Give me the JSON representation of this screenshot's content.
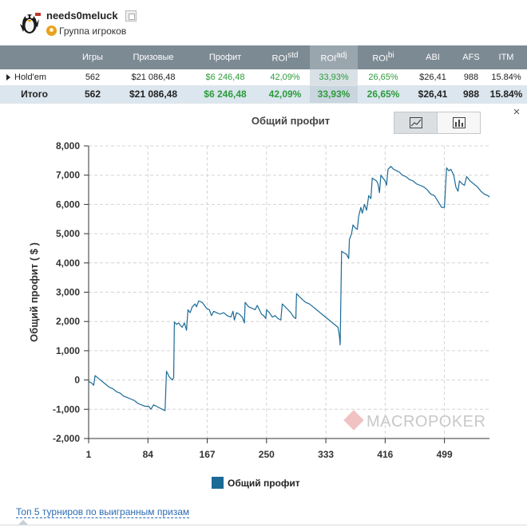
{
  "profile": {
    "username": "needs0meluck",
    "group_label": "Группа игроков"
  },
  "stats_table": {
    "headers": {
      "games": "Игры",
      "prizes": "Призовые",
      "profit": "Профит",
      "roi": "ROI",
      "roi_std_sup": "std",
      "roi_adj_sup": "adj",
      "roi_bi_sup": "bi",
      "abi": "ABI",
      "afs": "AFS",
      "itm": "ITM"
    },
    "rows": [
      {
        "name": "Hold'em",
        "games": "562",
        "prizes": "$21 086,48",
        "profit": "$6 246,48",
        "roi_std": "42,09%",
        "roi_adj": "33,93%",
        "roi_bi": "26,65%",
        "abi": "$26,41",
        "afs": "988",
        "itm": "15.84%"
      },
      {
        "name": "Итого",
        "games": "562",
        "prizes": "$21 086,48",
        "profit": "$6 246,48",
        "roi_std": "42,09%",
        "roi_adj": "33,93%",
        "roi_bi": "26,65%",
        "abi": "$26,41",
        "afs": "988",
        "itm": "15.84%"
      }
    ]
  },
  "chart_panel": {
    "close_icon": "close-icon",
    "line_view_icon": "line-chart-icon",
    "bar_view_icon": "bar-chart-icon",
    "watermark_text": "MACROPOKER",
    "colors": {
      "line": "#1a6a96",
      "grid": "#d4d4d4",
      "axis": "#333333"
    }
  },
  "chart_data": {
    "type": "line",
    "title": "Общий профит",
    "xlabel": "",
    "ylabel": "Общий профит ( $ )",
    "xlim": [
      1,
      562
    ],
    "ylim": [
      -2000,
      8000
    ],
    "x_ticks": [
      1,
      84,
      167,
      250,
      333,
      416,
      499
    ],
    "y_ticks": [
      -2000,
      -1000,
      0,
      1000,
      2000,
      3000,
      4000,
      5000,
      6000,
      7000,
      8000
    ],
    "y_tick_labels": [
      "-2,000",
      "-1,000",
      "0",
      "1,000",
      "2,000",
      "3,000",
      "4,000",
      "5,000",
      "6,000",
      "7,000",
      "8,000"
    ],
    "grid": true,
    "legend": "bottom",
    "series": [
      {
        "name": "Общий профит",
        "color": "#1a6a96",
        "points": [
          [
            1,
            -50
          ],
          [
            5,
            -100
          ],
          [
            8,
            -180
          ],
          [
            10,
            150
          ],
          [
            15,
            50
          ],
          [
            20,
            -50
          ],
          [
            25,
            -150
          ],
          [
            30,
            -250
          ],
          [
            35,
            -300
          ],
          [
            40,
            -400
          ],
          [
            45,
            -450
          ],
          [
            50,
            -550
          ],
          [
            55,
            -600
          ],
          [
            60,
            -650
          ],
          [
            65,
            -700
          ],
          [
            70,
            -800
          ],
          [
            75,
            -850
          ],
          [
            80,
            -900
          ],
          [
            85,
            -900
          ],
          [
            88,
            -1000
          ],
          [
            92,
            -850
          ],
          [
            96,
            -900
          ],
          [
            100,
            -950
          ],
          [
            104,
            -1000
          ],
          [
            108,
            -1050
          ],
          [
            110,
            300
          ],
          [
            114,
            100
          ],
          [
            118,
            0
          ],
          [
            120,
            80
          ],
          [
            121,
            1980
          ],
          [
            124,
            1900
          ],
          [
            127,
            1950
          ],
          [
            130,
            1850
          ],
          [
            132,
            1800
          ],
          [
            135,
            1950
          ],
          [
            138,
            1700
          ],
          [
            140,
            2400
          ],
          [
            143,
            2300
          ],
          [
            146,
            2500
          ],
          [
            150,
            2600
          ],
          [
            152,
            2500
          ],
          [
            155,
            2700
          ],
          [
            160,
            2650
          ],
          [
            163,
            2550
          ],
          [
            166,
            2450
          ],
          [
            170,
            2400
          ],
          [
            173,
            2200
          ],
          [
            176,
            2350
          ],
          [
            180,
            2300
          ],
          [
            185,
            2250
          ],
          [
            190,
            2300
          ],
          [
            195,
            2200
          ],
          [
            200,
            2150
          ],
          [
            203,
            2350
          ],
          [
            205,
            2050
          ],
          [
            208,
            2300
          ],
          [
            212,
            2250
          ],
          [
            216,
            2150
          ],
          [
            219,
            1950
          ],
          [
            220,
            2650
          ],
          [
            225,
            2500
          ],
          [
            230,
            2450
          ],
          [
            234,
            2400
          ],
          [
            237,
            2550
          ],
          [
            240,
            2400
          ],
          [
            243,
            2250
          ],
          [
            246,
            2200
          ],
          [
            249,
            2100
          ],
          [
            250,
            2400
          ],
          [
            254,
            2300
          ],
          [
            258,
            2150
          ],
          [
            262,
            2200
          ],
          [
            266,
            2100
          ],
          [
            270,
            2050
          ],
          [
            272,
            2600
          ],
          [
            276,
            2500
          ],
          [
            280,
            2400
          ],
          [
            284,
            2300
          ],
          [
            288,
            2150
          ],
          [
            291,
            2100
          ],
          [
            292,
            2950
          ],
          [
            296,
            2850
          ],
          [
            300,
            2750
          ],
          [
            305,
            2650
          ],
          [
            310,
            2600
          ],
          [
            315,
            2500
          ],
          [
            320,
            2400
          ],
          [
            325,
            2300
          ],
          [
            330,
            2200
          ],
          [
            335,
            2100
          ],
          [
            340,
            2000
          ],
          [
            345,
            1900
          ],
          [
            350,
            1800
          ],
          [
            352,
            1500
          ],
          [
            353,
            1200
          ],
          [
            355,
            4400
          ],
          [
            358,
            4350
          ],
          [
            362,
            4300
          ],
          [
            365,
            4150
          ],
          [
            366,
            4800
          ],
          [
            369,
            5000
          ],
          [
            371,
            5300
          ],
          [
            374,
            5200
          ],
          [
            377,
            5150
          ],
          [
            379,
            5600
          ],
          [
            382,
            5900
          ],
          [
            384,
            5700
          ],
          [
            387,
            6000
          ],
          [
            390,
            5800
          ],
          [
            393,
            6300
          ],
          [
            396,
            6200
          ],
          [
            398,
            6900
          ],
          [
            401,
            6850
          ],
          [
            404,
            6800
          ],
          [
            406,
            6700
          ],
          [
            408,
            6400
          ],
          [
            410,
            7000
          ],
          [
            413,
            6900
          ],
          [
            416,
            6800
          ],
          [
            418,
            6650
          ],
          [
            420,
            7200
          ],
          [
            424,
            7300
          ],
          [
            428,
            7200
          ],
          [
            432,
            7150
          ],
          [
            436,
            7100
          ],
          [
            440,
            7000
          ],
          [
            445,
            6950
          ],
          [
            450,
            6850
          ],
          [
            455,
            6800
          ],
          [
            460,
            6700
          ],
          [
            465,
            6650
          ],
          [
            470,
            6600
          ],
          [
            475,
            6500
          ],
          [
            480,
            6350
          ],
          [
            485,
            6300
          ],
          [
            490,
            6100
          ],
          [
            495,
            5900
          ],
          [
            499,
            5900
          ],
          [
            502,
            7250
          ],
          [
            505,
            7150
          ],
          [
            508,
            7200
          ],
          [
            512,
            7000
          ],
          [
            515,
            6600
          ],
          [
            518,
            6450
          ],
          [
            520,
            6800
          ],
          [
            524,
            6700
          ],
          [
            527,
            6650
          ],
          [
            530,
            6950
          ],
          [
            535,
            6800
          ],
          [
            540,
            6700
          ],
          [
            545,
            6600
          ],
          [
            550,
            6450
          ],
          [
            555,
            6350
          ],
          [
            560,
            6300
          ],
          [
            562,
            6250
          ]
        ]
      }
    ]
  },
  "footer": {
    "top5_link": "Топ 5 турниров по выигранным призам"
  }
}
